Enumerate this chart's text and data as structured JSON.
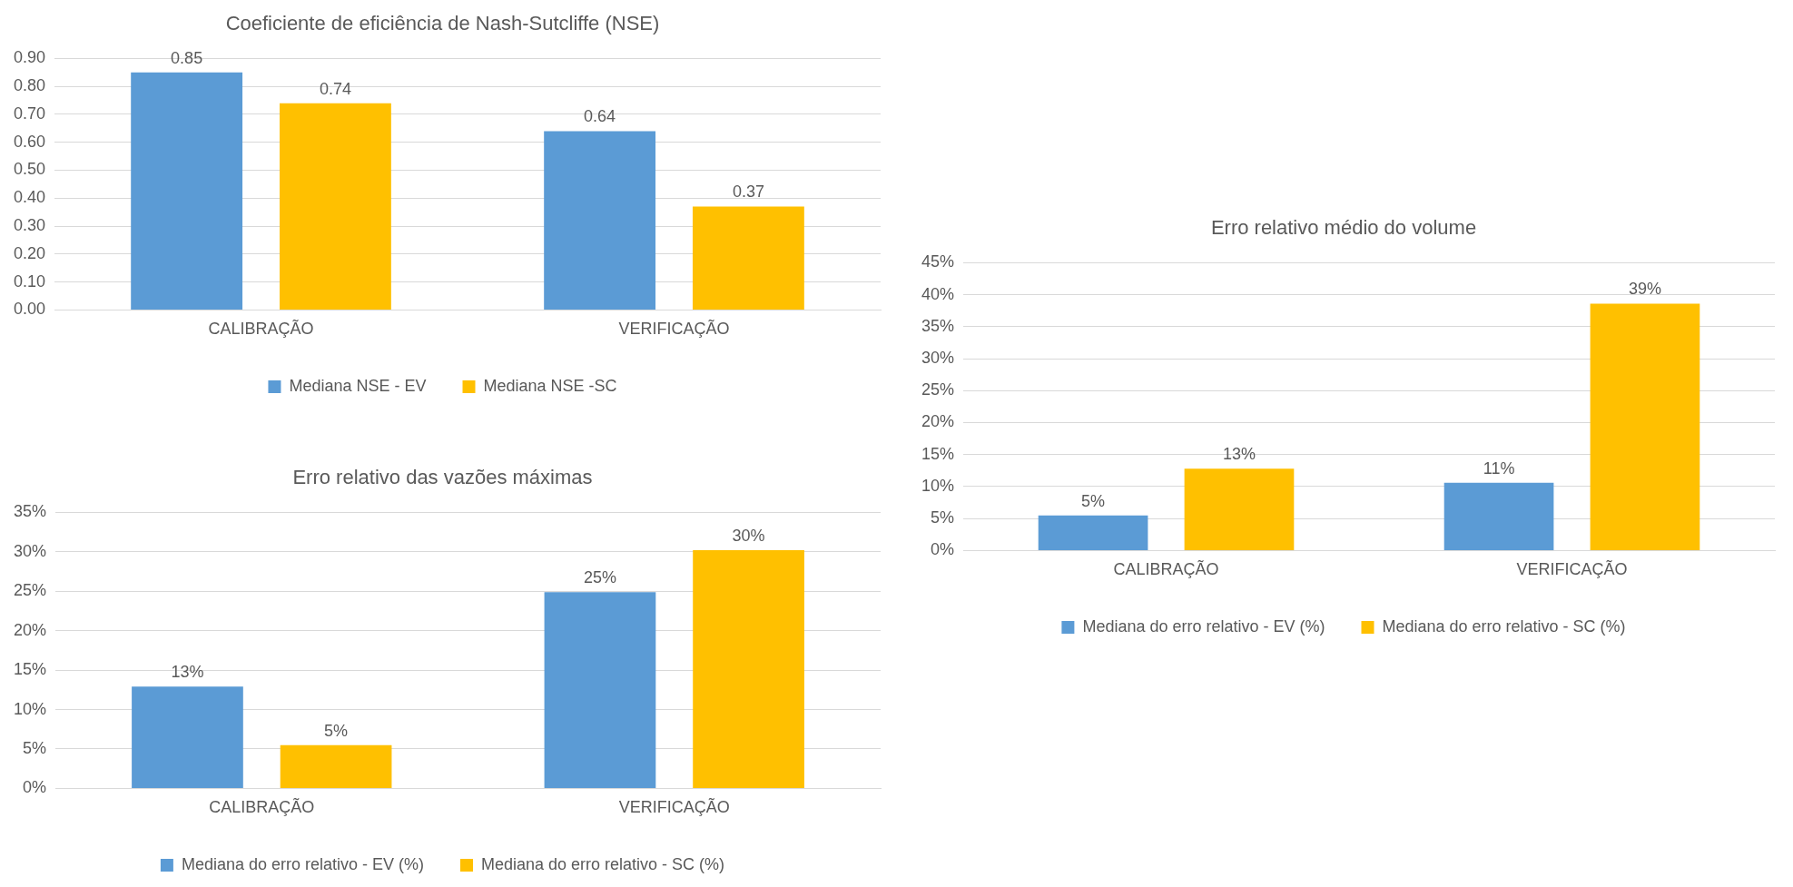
{
  "chart_data": [
    {
      "type": "bar",
      "title": "Coeficiente de eficiência de Nash-Sutcliffe (NSE)",
      "categories": [
        "CALIBRAÇÃO",
        "VERIFICAÇÃO"
      ],
      "series": [
        {
          "name": "Mediana NSE - EV",
          "color": "#5b9bd5",
          "values": [
            0.85,
            0.64
          ]
        },
        {
          "name": "Mediana NSE -SC",
          "color": "#ffc000",
          "values": [
            0.74,
            0.37
          ]
        }
      ],
      "ylim": [
        0,
        0.9
      ],
      "yticks": [
        {
          "value": 0,
          "label": "0.00"
        },
        {
          "value": 0.1,
          "label": "0.10"
        },
        {
          "value": 0.2,
          "label": "0.20"
        },
        {
          "value": 0.3,
          "label": "0.30"
        },
        {
          "value": 0.4,
          "label": "0.40"
        },
        {
          "value": 0.5,
          "label": "0.50"
        },
        {
          "value": 0.6,
          "label": "0.60"
        },
        {
          "value": 0.7,
          "label": "0.70"
        },
        {
          "value": 0.8,
          "label": "0.80"
        },
        {
          "value": 0.9,
          "label": "0.90"
        }
      ],
      "grid": "y",
      "legend": "bottom",
      "data_labels": true
    },
    {
      "type": "bar",
      "title": "Erro relativo das vazões máximas",
      "categories": [
        "CALIBRAÇÃO",
        "VERIFICAÇÃO"
      ],
      "series": [
        {
          "name": "Mediana do erro relativo - EV (%)",
          "color": "#5b9bd5",
          "values": [
            12.9,
            24.9
          ],
          "value_labels": [
            "13%",
            "25%"
          ]
        },
        {
          "name": "Mediana do erro relativo - SC (%)",
          "color": "#ffc000",
          "values": [
            5.5,
            30.2
          ],
          "value_labels": [
            "5%",
            "30%"
          ]
        }
      ],
      "ylim": [
        0,
        35
      ],
      "yticks": [
        {
          "value": 0,
          "label": "0%"
        },
        {
          "value": 5,
          "label": "5%"
        },
        {
          "value": 10,
          "label": "10%"
        },
        {
          "value": 15,
          "label": "15%"
        },
        {
          "value": 20,
          "label": "20%"
        },
        {
          "value": 25,
          "label": "25%"
        },
        {
          "value": 30,
          "label": "30%"
        },
        {
          "value": 35,
          "label": "35%"
        }
      ],
      "grid": "y",
      "legend": "bottom"
    },
    {
      "type": "bar",
      "title": "Erro relativo médio do volume",
      "categories": [
        "CALIBRAÇÃO",
        "VERIFICAÇÃO"
      ],
      "series": [
        {
          "name": "Mediana do erro relativo - EV (%)",
          "color": "#5b9bd5",
          "values": [
            5.5,
            10.6
          ],
          "value_labels": [
            "5%",
            "11%"
          ]
        },
        {
          "name": "Mediana do erro relativo - SC (%)",
          "color": "#ffc000",
          "values": [
            12.8,
            38.6
          ],
          "value_labels": [
            "13%",
            "39%"
          ]
        }
      ],
      "ylim": [
        0,
        45
      ],
      "yticks": [
        {
          "value": 0,
          "label": "0%"
        },
        {
          "value": 5,
          "label": "5%"
        },
        {
          "value": 10,
          "label": "10%"
        },
        {
          "value": 15,
          "label": "15%"
        },
        {
          "value": 20,
          "label": "20%"
        },
        {
          "value": 25,
          "label": "25%"
        },
        {
          "value": 30,
          "label": "30%"
        },
        {
          "value": 35,
          "label": "35%"
        },
        {
          "value": 40,
          "label": "40%"
        },
        {
          "value": 45,
          "label": "45%"
        }
      ],
      "grid": "y",
      "legend": "bottom"
    }
  ]
}
